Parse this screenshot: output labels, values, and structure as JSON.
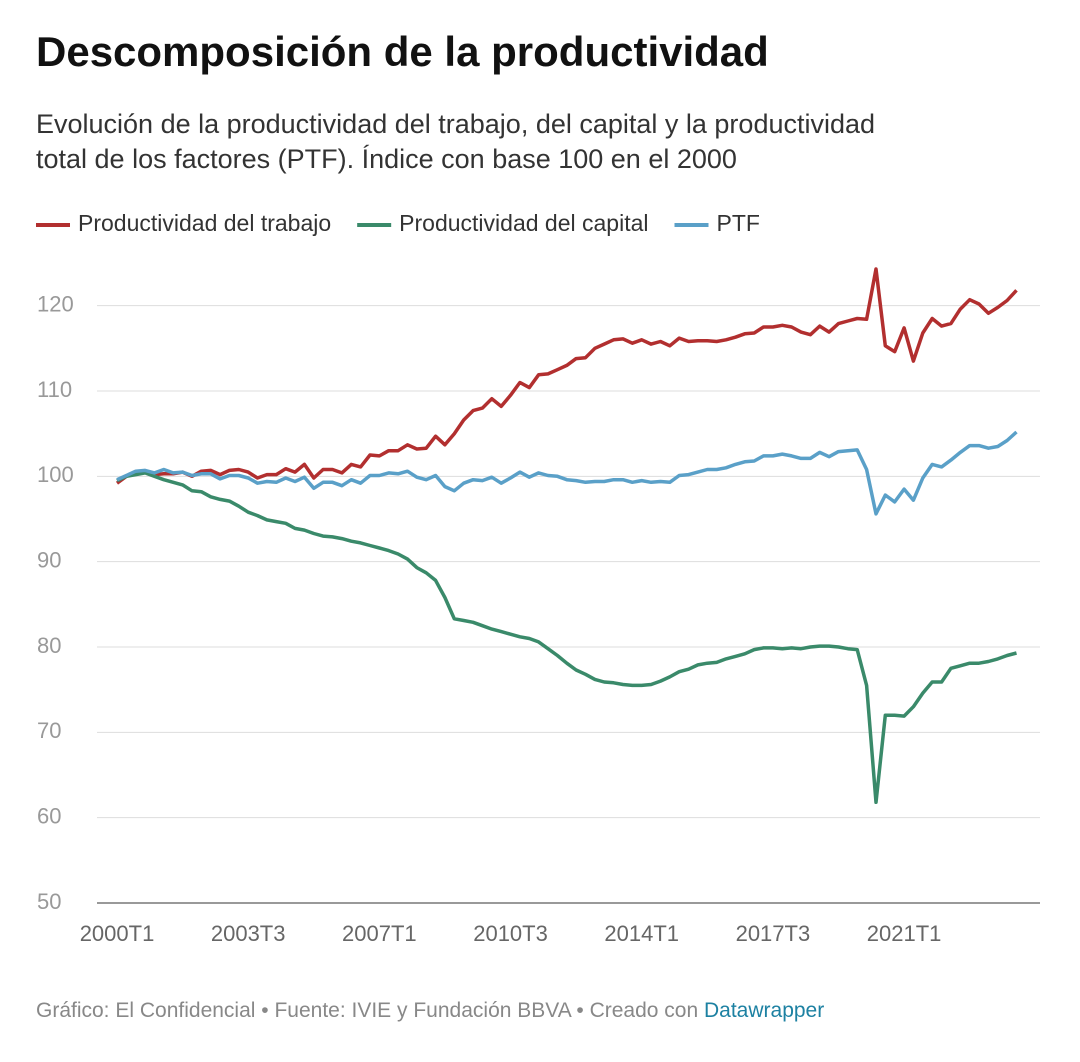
{
  "chart_data": {
    "type": "line",
    "title": "Descomposición de la productividad",
    "subtitle": [
      "Evolución de la productividad del trabajo, del capital y la productividad",
      "total de los factores (PTF). Índice con base 100 en el 2000"
    ],
    "footer": {
      "text": "Gráfico: El Confidencial • Fuente: IVIE y Fundación BBVA • Creado con",
      "link": "Datawrapper"
    },
    "categories": [
      "2000T1",
      null,
      null,
      null,
      null,
      null,
      null,
      null,
      null,
      null,
      null,
      null,
      null,
      null,
      "2003T3",
      null,
      null,
      null,
      null,
      null,
      null,
      null,
      null,
      null,
      null,
      null,
      null,
      null,
      "2007T1",
      null,
      null,
      null,
      null,
      null,
      null,
      null,
      null,
      null,
      null,
      null,
      null,
      null,
      "2010T3",
      null,
      null,
      null,
      null,
      null,
      null,
      null,
      null,
      null,
      null,
      null,
      null,
      null,
      "2014T1",
      null,
      null,
      null,
      null,
      null,
      null,
      null,
      null,
      null,
      null,
      null,
      null,
      null,
      "2017T3",
      null,
      null,
      null,
      null,
      null,
      null,
      null,
      null,
      null,
      null,
      null,
      null,
      null,
      "2021T1",
      null,
      null,
      null,
      null,
      null,
      null,
      null,
      null,
      null,
      null,
      null,
      null
    ],
    "series": [
      {
        "name": "Productividad del trabajo",
        "color": "#b22f2f",
        "values": [
          99.2,
          100,
          100.5,
          100.5,
          100.2,
          100.3,
          100.3,
          100.5,
          100.0,
          100.6,
          100.7,
          100.2,
          100.7,
          100.8,
          100.5,
          99.8,
          100.2,
          100.2,
          100.9,
          100.5,
          101.4,
          99.8,
          100.8,
          100.8,
          100.4,
          101.4,
          101.1,
          102.5,
          102.4,
          103,
          103,
          103.7,
          103.2,
          103.3,
          104.7,
          103.7,
          105,
          106.6,
          107.7,
          108,
          109.1,
          108.2,
          109.5,
          111,
          110.4,
          111.9,
          112,
          112.5,
          113,
          113.8,
          113.9,
          115,
          115.5,
          116,
          116.1,
          115.6,
          116,
          115.5,
          115.8,
          115.3,
          116.2,
          115.8,
          115.9,
          115.9,
          115.8,
          116,
          116.3,
          116.7,
          116.8,
          117.5,
          117.5,
          117.7,
          117.5,
          116.9,
          116.6,
          117.6,
          116.9,
          117.9,
          118.2,
          118.5,
          118.4,
          124.3,
          115.3,
          114.6,
          117.4,
          113.5,
          116.8,
          118.5,
          117.6,
          117.9,
          119.6,
          120.7,
          120.2,
          119.1,
          119.8,
          120.6,
          121.8
        ]
      },
      {
        "name": "Productividad del capital",
        "color": "#3a8a6a",
        "values": [
          99.5,
          100,
          100.2,
          100.4,
          100,
          99.6,
          99.3,
          99,
          98.3,
          98.2,
          97.6,
          97.3,
          97.1,
          96.5,
          95.8,
          95.4,
          94.9,
          94.7,
          94.5,
          93.9,
          93.7,
          93.3,
          93,
          92.9,
          92.7,
          92.4,
          92.2,
          91.9,
          91.6,
          91.3,
          90.9,
          90.3,
          89.3,
          88.7,
          87.8,
          85.8,
          83.3,
          83.1,
          82.9,
          82.5,
          82.1,
          81.8,
          81.5,
          81.2,
          81,
          80.6,
          79.8,
          79,
          78.1,
          77.3,
          76.8,
          76.2,
          75.9,
          75.8,
          75.6,
          75.5,
          75.5,
          75.6,
          76,
          76.5,
          77.1,
          77.4,
          77.9,
          78.1,
          78.2,
          78.6,
          78.9,
          79.2,
          79.7,
          79.9,
          79.9,
          79.8,
          79.9,
          79.8,
          80,
          80.1,
          80.1,
          80,
          79.8,
          79.7,
          75.5,
          61.8,
          72,
          72,
          71.9,
          73,
          74.6,
          75.9,
          75.9,
          77.5,
          77.8,
          78.1,
          78.1,
          78.3,
          78.6,
          79,
          79.3
        ]
      },
      {
        "name": "PTF",
        "color": "#5aa0c8",
        "values": [
          99.6,
          100.1,
          100.6,
          100.7,
          100.4,
          100.8,
          100.4,
          100.5,
          100.1,
          100.3,
          100.3,
          99.7,
          100.1,
          100.1,
          99.8,
          99.2,
          99.4,
          99.3,
          99.8,
          99.4,
          99.9,
          98.6,
          99.3,
          99.3,
          98.9,
          99.6,
          99.2,
          100.1,
          100.1,
          100.4,
          100.3,
          100.6,
          99.9,
          99.6,
          100.1,
          98.8,
          98.3,
          99.2,
          99.6,
          99.5,
          99.9,
          99.2,
          99.8,
          100.5,
          99.9,
          100.4,
          100.1,
          100,
          99.6,
          99.5,
          99.3,
          99.4,
          99.4,
          99.6,
          99.6,
          99.3,
          99.5,
          99.3,
          99.4,
          99.3,
          100.1,
          100.2,
          100.5,
          100.8,
          100.8,
          101,
          101.4,
          101.7,
          101.8,
          102.4,
          102.4,
          102.6,
          102.4,
          102.1,
          102.1,
          102.8,
          102.3,
          102.9,
          103,
          103.1,
          100.8,
          95.6,
          97.8,
          97,
          98.5,
          97.2,
          99.8,
          101.4,
          101.1,
          101.9,
          102.8,
          103.6,
          103.6,
          103.3,
          103.5,
          104.2,
          105.2
        ]
      }
    ],
    "ylim": [
      50,
      125
    ],
    "yticks": [
      50,
      60,
      70,
      80,
      90,
      100,
      110,
      120
    ],
    "grid": true
  }
}
